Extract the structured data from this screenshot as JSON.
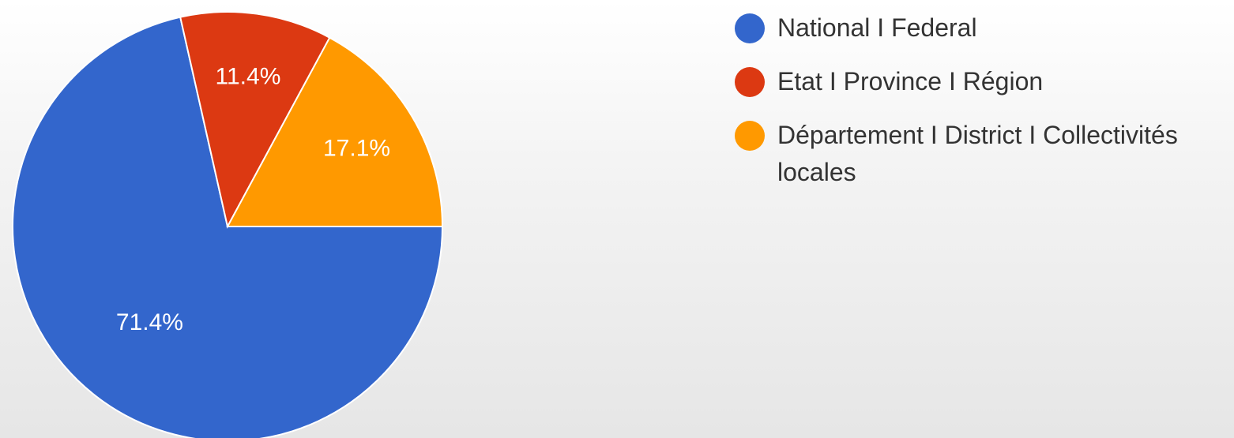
{
  "chart_data": {
    "type": "pie",
    "categories": [
      "National I Federal",
      "Etat I Province I Région",
      "Département I District I Collectivités locales"
    ],
    "values": [
      71.4,
      11.4,
      17.1
    ],
    "value_labels": [
      "71.4%",
      "11.4%",
      "17.1%"
    ],
    "colors": [
      "#3366cc",
      "#dc3912",
      "#ff9900"
    ],
    "legend": "right"
  }
}
